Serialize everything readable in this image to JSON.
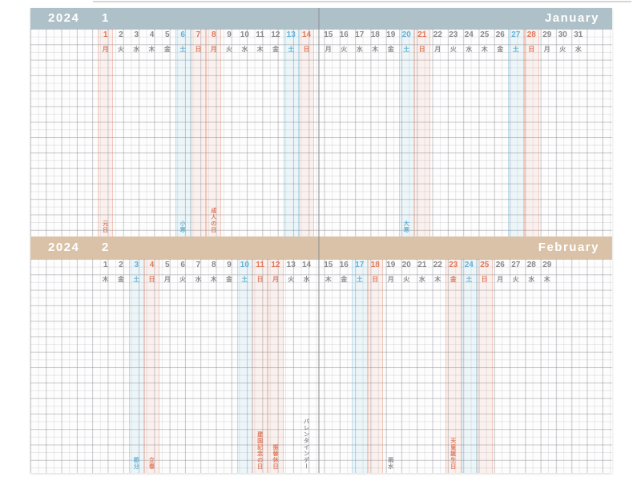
{
  "calendar": {
    "year": "2024",
    "colors": {
      "red": "#e0795c",
      "blue": "#67b2d6",
      "gray": "#8b8b8d",
      "january_header": "#aec0c8",
      "february_header": "#d9c2a7",
      "paper": "#fdfdfd"
    },
    "months": [
      {
        "year_label": "2024",
        "number": "1",
        "name": "January",
        "header_color": "#aec0c8",
        "days": [
          {
            "date": "1",
            "weekday": "月",
            "type": "holiday"
          },
          {
            "date": "2",
            "weekday": "火",
            "type": "weekday"
          },
          {
            "date": "3",
            "weekday": "水",
            "type": "weekday"
          },
          {
            "date": "4",
            "weekday": "木",
            "type": "weekday"
          },
          {
            "date": "5",
            "weekday": "金",
            "type": "weekday"
          },
          {
            "date": "6",
            "weekday": "土",
            "type": "saturday"
          },
          {
            "date": "7",
            "weekday": "日",
            "type": "sunday"
          },
          {
            "date": "8",
            "weekday": "月",
            "type": "holiday"
          },
          {
            "date": "9",
            "weekday": "火",
            "type": "weekday"
          },
          {
            "date": "10",
            "weekday": "水",
            "type": "weekday"
          },
          {
            "date": "11",
            "weekday": "木",
            "type": "weekday"
          },
          {
            "date": "12",
            "weekday": "金",
            "type": "weekday"
          },
          {
            "date": "13",
            "weekday": "土",
            "type": "saturday"
          },
          {
            "date": "14",
            "weekday": "日",
            "type": "sunday"
          },
          {
            "date": "15",
            "weekday": "月",
            "type": "weekday"
          },
          {
            "date": "16",
            "weekday": "火",
            "type": "weekday"
          },
          {
            "date": "17",
            "weekday": "水",
            "type": "weekday"
          },
          {
            "date": "18",
            "weekday": "木",
            "type": "weekday"
          },
          {
            "date": "19",
            "weekday": "金",
            "type": "weekday"
          },
          {
            "date": "20",
            "weekday": "土",
            "type": "saturday"
          },
          {
            "date": "21",
            "weekday": "日",
            "type": "sunday"
          },
          {
            "date": "22",
            "weekday": "月",
            "type": "weekday"
          },
          {
            "date": "23",
            "weekday": "火",
            "type": "weekday"
          },
          {
            "date": "24",
            "weekday": "水",
            "type": "weekday"
          },
          {
            "date": "25",
            "weekday": "木",
            "type": "weekday"
          },
          {
            "date": "26",
            "weekday": "金",
            "type": "weekday"
          },
          {
            "date": "27",
            "weekday": "土",
            "type": "saturday"
          },
          {
            "date": "28",
            "weekday": "日",
            "type": "sunday"
          },
          {
            "date": "29",
            "weekday": "月",
            "type": "weekday"
          },
          {
            "date": "30",
            "weekday": "火",
            "type": "weekday"
          },
          {
            "date": "31",
            "weekday": "水",
            "type": "weekday"
          }
        ],
        "holiday_labels": [
          {
            "date": 1,
            "text": "元日",
            "color": "red"
          },
          {
            "date": 6,
            "text": "小寒",
            "color": "blue"
          },
          {
            "date": 8,
            "text": "成人の日",
            "color": "red"
          },
          {
            "date": 20,
            "text": "大寒",
            "color": "blue"
          }
        ]
      },
      {
        "year_label": "2024",
        "number": "2",
        "name": "February",
        "header_color": "#d9c2a7",
        "days": [
          {
            "date": "1",
            "weekday": "木",
            "type": "weekday"
          },
          {
            "date": "2",
            "weekday": "金",
            "type": "weekday"
          },
          {
            "date": "3",
            "weekday": "土",
            "type": "saturday"
          },
          {
            "date": "4",
            "weekday": "日",
            "type": "sunday"
          },
          {
            "date": "5",
            "weekday": "月",
            "type": "weekday"
          },
          {
            "date": "6",
            "weekday": "火",
            "type": "weekday"
          },
          {
            "date": "7",
            "weekday": "水",
            "type": "weekday"
          },
          {
            "date": "8",
            "weekday": "木",
            "type": "weekday"
          },
          {
            "date": "9",
            "weekday": "金",
            "type": "weekday"
          },
          {
            "date": "10",
            "weekday": "土",
            "type": "saturday"
          },
          {
            "date": "11",
            "weekday": "日",
            "type": "sunday"
          },
          {
            "date": "12",
            "weekday": "月",
            "type": "holiday"
          },
          {
            "date": "13",
            "weekday": "火",
            "type": "weekday"
          },
          {
            "date": "14",
            "weekday": "水",
            "type": "weekday"
          },
          {
            "date": "15",
            "weekday": "木",
            "type": "weekday"
          },
          {
            "date": "16",
            "weekday": "金",
            "type": "weekday"
          },
          {
            "date": "17",
            "weekday": "土",
            "type": "saturday"
          },
          {
            "date": "18",
            "weekday": "日",
            "type": "sunday"
          },
          {
            "date": "19",
            "weekday": "月",
            "type": "weekday"
          },
          {
            "date": "20",
            "weekday": "火",
            "type": "weekday"
          },
          {
            "date": "21",
            "weekday": "水",
            "type": "weekday"
          },
          {
            "date": "22",
            "weekday": "木",
            "type": "weekday"
          },
          {
            "date": "23",
            "weekday": "金",
            "type": "holiday"
          },
          {
            "date": "24",
            "weekday": "土",
            "type": "saturday"
          },
          {
            "date": "25",
            "weekday": "日",
            "type": "sunday"
          },
          {
            "date": "26",
            "weekday": "月",
            "type": "weekday"
          },
          {
            "date": "27",
            "weekday": "火",
            "type": "weekday"
          },
          {
            "date": "28",
            "weekday": "水",
            "type": "weekday"
          },
          {
            "date": "29",
            "weekday": "木",
            "type": "weekday"
          }
        ],
        "holiday_labels": [
          {
            "date": 3,
            "text": "節分",
            "color": "blue"
          },
          {
            "date": 4,
            "text": "立春",
            "color": "red"
          },
          {
            "date": 11,
            "text": "建国記念の日",
            "color": "red"
          },
          {
            "date": 12,
            "text": "振替休日",
            "color": "red"
          },
          {
            "date": 14,
            "text": "バレンタインデー",
            "color": "gray"
          },
          {
            "date": 19,
            "text": "雨水",
            "color": "gray"
          },
          {
            "date": 23,
            "text": "天皇誕生日",
            "color": "red"
          }
        ]
      }
    ]
  }
}
